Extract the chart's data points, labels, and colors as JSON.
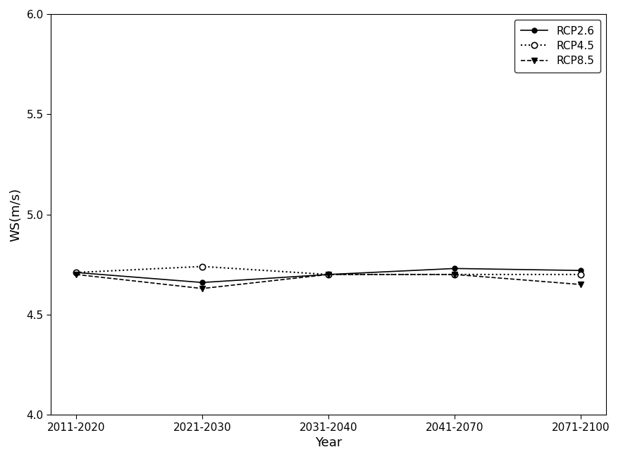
{
  "x_labels": [
    "2011-2020",
    "2021-2030",
    "2031-2040",
    "2041-2070",
    "2071-2100"
  ],
  "x_positions": [
    0,
    1,
    2,
    3,
    4
  ],
  "rcp26": [
    4.71,
    4.66,
    4.7,
    4.73,
    4.72
  ],
  "rcp45": [
    4.71,
    4.74,
    4.7,
    4.7,
    4.7
  ],
  "rcp85": [
    4.7,
    4.63,
    4.7,
    4.7,
    4.65
  ],
  "ylabel": "WS(m/s)",
  "xlabel": "Year",
  "ylim": [
    4.0,
    6.0
  ],
  "yticks": [
    4.0,
    4.5,
    5.0,
    5.5,
    6.0
  ],
  "legend_labels": [
    "RCP2.6",
    "RCP4.5",
    "RCP8.5"
  ],
  "line_color": "#000000",
  "background_color": "#ffffff",
  "axis_fontsize": 13,
  "tick_fontsize": 11,
  "legend_fontsize": 11
}
